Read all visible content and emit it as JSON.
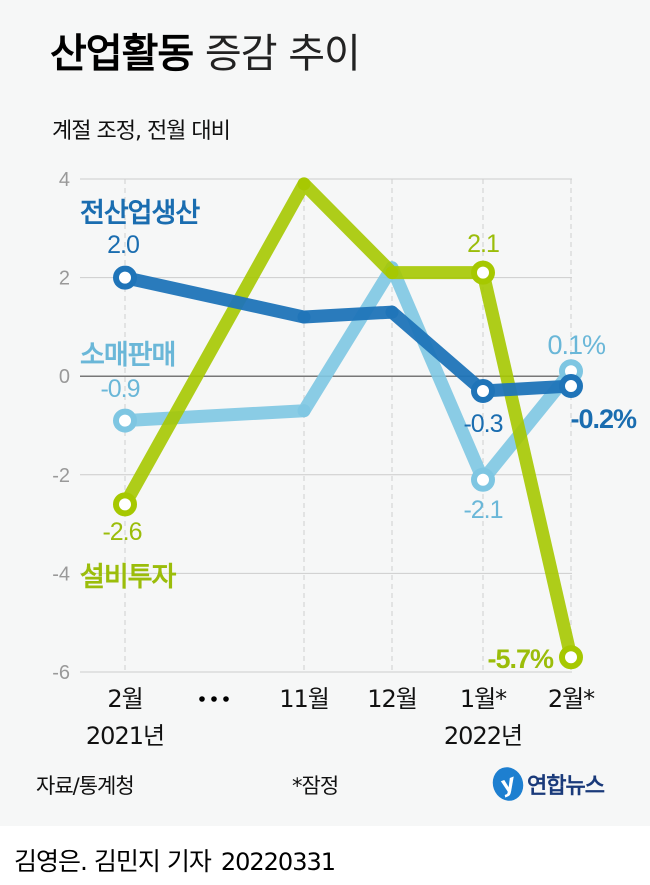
{
  "header": {
    "title_bold": "산업활동",
    "title_light": "증감 추이",
    "subtitle": "계절 조정, 전월 대비"
  },
  "footer": {
    "source": "자료/통계청",
    "note": "*잠정",
    "logo_text": "연합뉴스",
    "logo_mark": "y",
    "byline": "김영은. 김민지 기자",
    "date": "20220331"
  },
  "colors": {
    "industrial_production": "#1f74b8",
    "retail_sales": "#7ec6e2",
    "equipment_investment": "#a6c800",
    "grid": "#cccccc",
    "zero_line": "#777777"
  },
  "chart_data": {
    "type": "line",
    "title": "산업활동 증감 추이",
    "subtitle": "계절 조정, 전월 대비",
    "categories": [
      "2월",
      "…",
      "11월",
      "12월",
      "1월*",
      "2월*"
    ],
    "year_labels": [
      {
        "label": "2021년",
        "under": "2월"
      },
      {
        "label": "2022년",
        "under": "1월*"
      }
    ],
    "x_points": [
      "2월",
      "11월",
      "12월",
      "1월*",
      "2월*"
    ],
    "yticks": [
      4,
      2,
      0,
      -2,
      -4,
      -6
    ],
    "ylim": [
      -6,
      4
    ],
    "grid": true,
    "series": [
      {
        "name": "전산업생산",
        "key": "industrial_production",
        "values": [
          2.0,
          1.2,
          1.3,
          -0.3,
          -0.2
        ],
        "labels": [
          "2.0",
          null,
          null,
          "-0.3",
          "-0.2%"
        ]
      },
      {
        "name": "소매판매",
        "key": "retail_sales",
        "values": [
          -0.9,
          -0.7,
          2.2,
          -2.1,
          0.1
        ],
        "labels": [
          "-0.9",
          null,
          null,
          "-2.1",
          "0.1%"
        ]
      },
      {
        "name": "설비투자",
        "key": "equipment_investment",
        "values": [
          -2.6,
          3.9,
          2.1,
          2.1,
          -5.7
        ],
        "labels": [
          "-2.6",
          null,
          null,
          "2.1",
          "-5.7%"
        ]
      }
    ]
  }
}
